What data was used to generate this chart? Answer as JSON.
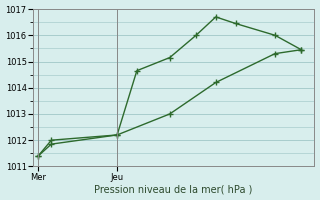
{
  "line1_x": [
    0,
    0.5,
    3,
    3.75,
    5.0,
    6.0,
    6.75,
    7.5,
    9.0,
    10.0
  ],
  "line1_y": [
    1011.4,
    1012.0,
    1012.2,
    1014.65,
    1015.15,
    1016.0,
    1016.7,
    1016.45,
    1016.0,
    1015.45
  ],
  "line2_x": [
    0,
    0.5,
    3,
    5.0,
    6.75,
    9.0,
    10.0
  ],
  "line2_y": [
    1011.4,
    1011.85,
    1012.2,
    1013.0,
    1014.2,
    1015.3,
    1015.45
  ],
  "color": "#2d6a2d",
  "bg_color": "#d8eeed",
  "grid_color": "#a8cccc",
  "ylim": [
    1011,
    1017
  ],
  "yticks": [
    1011,
    1012,
    1013,
    1014,
    1015,
    1016,
    1017
  ],
  "xlabel": "Pression niveau de la mer( hPa )",
  "mer_x": 0,
  "jeu_x": 3,
  "xlim": [
    -0.2,
    10.5
  ],
  "marker": "P",
  "markersize": 3,
  "linewidth": 1.0
}
